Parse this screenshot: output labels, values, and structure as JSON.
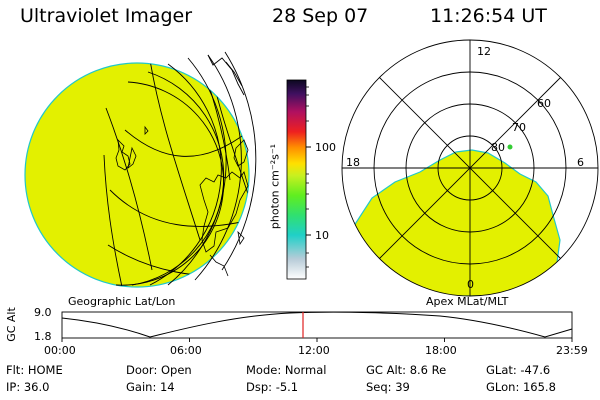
{
  "header": {
    "instrument": "Ultraviolet Imager",
    "date": "28 Sep 07",
    "time": "11:26:54 UT"
  },
  "colors": {
    "emission_fill": "#e3f000",
    "emission_edge": "#22c8c8",
    "timeline_marker": "#e02020"
  },
  "geo_panel": {
    "label": "Geographic Lat/Lon"
  },
  "polar_panel": {
    "label": "Apex MLat/MLT",
    "mlt_labels": {
      "top": "12",
      "left": "18",
      "right": "6",
      "bottom": "0"
    },
    "lat_labels": [
      "60",
      "70",
      "80"
    ]
  },
  "colorbar": {
    "unit_label": "photon cm⁻²s⁻¹",
    "ticks": [
      "100",
      "10"
    ]
  },
  "timeline": {
    "axis_label": "GC Alt",
    "y_ticks": [
      "9.0",
      "1.8"
    ],
    "x_ticks": [
      "00:00",
      "06:00",
      "12:00",
      "18:00",
      "23:59"
    ]
  },
  "status": {
    "flt_label": "Flt:",
    "flt_value": "HOME",
    "ip_label": "IP:",
    "ip_value": "36.0",
    "door_label": "Door:",
    "door_value": "Open",
    "gain_label": "Gain:",
    "gain_value": "14",
    "mode_label": "Mode:",
    "mode_value": "Normal",
    "dsp_label": "Dsp:",
    "dsp_value": "-5.1",
    "gcalt_label": "GC Alt:",
    "gcalt_value": "8.6 Re",
    "seq_label": "Seq:",
    "seq_value": "39",
    "glat_label": "GLat:",
    "glat_value": "-47.6",
    "glon_label": "GLon:",
    "glon_value": "165.8"
  }
}
